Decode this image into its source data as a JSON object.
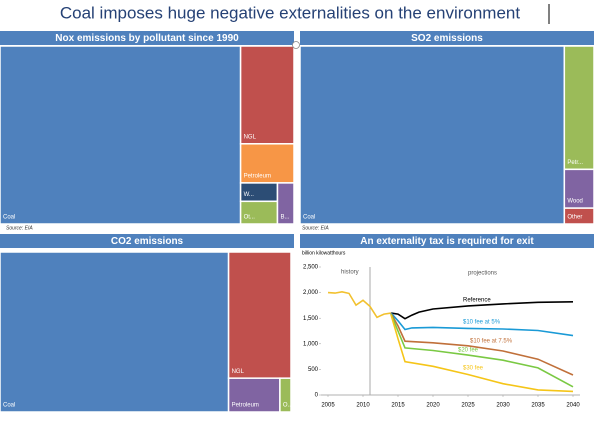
{
  "title": "Coal imposes huge negative externalities on the environment",
  "chart_data": [
    {
      "type": "treemap",
      "title": "Nox emissions by pollutant since 1990",
      "categories": [
        "Coal",
        "NGL",
        "Petroleum",
        "W...",
        "Ot...",
        "B..."
      ],
      "values": [
        82,
        10,
        4,
        1.3,
        1.6,
        1.3
      ],
      "colors": [
        "#4f81bd",
        "#c0504d",
        "#f79646",
        "#2c4d75",
        "#9bbb59",
        "#8064a2"
      ],
      "source": "Source: EIA"
    },
    {
      "type": "treemap",
      "title": "SO2 emissions",
      "categories": [
        "Coal",
        "Petr...",
        "Wood",
        "Other"
      ],
      "values": [
        90,
        7,
        2.2,
        0.9
      ],
      "colors": [
        "#4f81bd",
        "#9bbb59",
        "#8064a2",
        "#c0504d"
      ],
      "source": "Source: EIA"
    },
    {
      "type": "treemap",
      "title": "CO2 emissions",
      "categories": [
        "Coal",
        "NGL",
        "Petroleum",
        "O..."
      ],
      "values": [
        78,
        16.8,
        3.7,
        0.8
      ],
      "colors": [
        "#4f81bd",
        "#c0504d",
        "#8064a2",
        "#9bbb59"
      ]
    },
    {
      "type": "line",
      "title": "An externality tax is required for exit",
      "y_label": "billion kilowatthours",
      "annotations": [
        "history",
        "projections"
      ],
      "xlim": [
        2004,
        2041
      ],
      "xticks": [
        2005,
        2010,
        2015,
        2020,
        2025,
        2030,
        2035,
        2040
      ],
      "ylim": [
        0,
        2500
      ],
      "yticks": [
        0,
        500,
        {
          "value": 1000,
          "label": "1,000"
        },
        {
          "value": 1500,
          "label": "1,500"
        },
        {
          "value": 2000,
          "label": "2,000"
        },
        {
          "value": 2500,
          "label": "2,500"
        }
      ],
      "vlines": [
        2011
      ],
      "series": [
        {
          "color": "#f2c12e",
          "x": [
            2005,
            2006,
            2007,
            2008,
            2009,
            2010,
            2011,
            2012,
            2013,
            2014
          ],
          "values": [
            2000,
            1990,
            2016,
            1985,
            1755,
            1850,
            1730,
            1515,
            1580,
            1600
          ]
        },
        {
          "name": "Reference",
          "color": "#000000",
          "x": [
            2014,
            2015,
            2016,
            2017,
            2018,
            2020,
            2025,
            2030,
            2035,
            2040
          ],
          "values": [
            1600,
            1580,
            1490,
            1560,
            1620,
            1680,
            1740,
            1780,
            1810,
            1820
          ]
        },
        {
          "name": "$10 fee at 5%",
          "color": "#1a9ad6",
          "x": [
            2014,
            2015,
            2016,
            2017,
            2020,
            2025,
            2030,
            2035,
            2040
          ],
          "values": [
            1600,
            1450,
            1280,
            1310,
            1320,
            1300,
            1290,
            1260,
            1160
          ]
        },
        {
          "name": "$10 fee at 7.5%",
          "color": "#c0703a",
          "x": [
            2014,
            2015,
            2016,
            2020,
            2025,
            2030,
            2035,
            2040
          ],
          "values": [
            1590,
            1350,
            1050,
            1020,
            960,
            860,
            700,
            390
          ]
        },
        {
          "name": "$20 fee",
          "color": "#7ac943",
          "x": [
            2014,
            2015,
            2016,
            2020,
            2025,
            2030,
            2035,
            2040
          ],
          "values": [
            1580,
            1250,
            920,
            870,
            780,
            680,
            530,
            160
          ]
        },
        {
          "name": "$30 fee",
          "color": "#f5c518",
          "x": [
            2014,
            2015,
            2016,
            2020,
            2025,
            2030,
            2035,
            2040
          ],
          "values": [
            1570,
            1100,
            650,
            560,
            400,
            220,
            100,
            70
          ]
        }
      ]
    }
  ]
}
